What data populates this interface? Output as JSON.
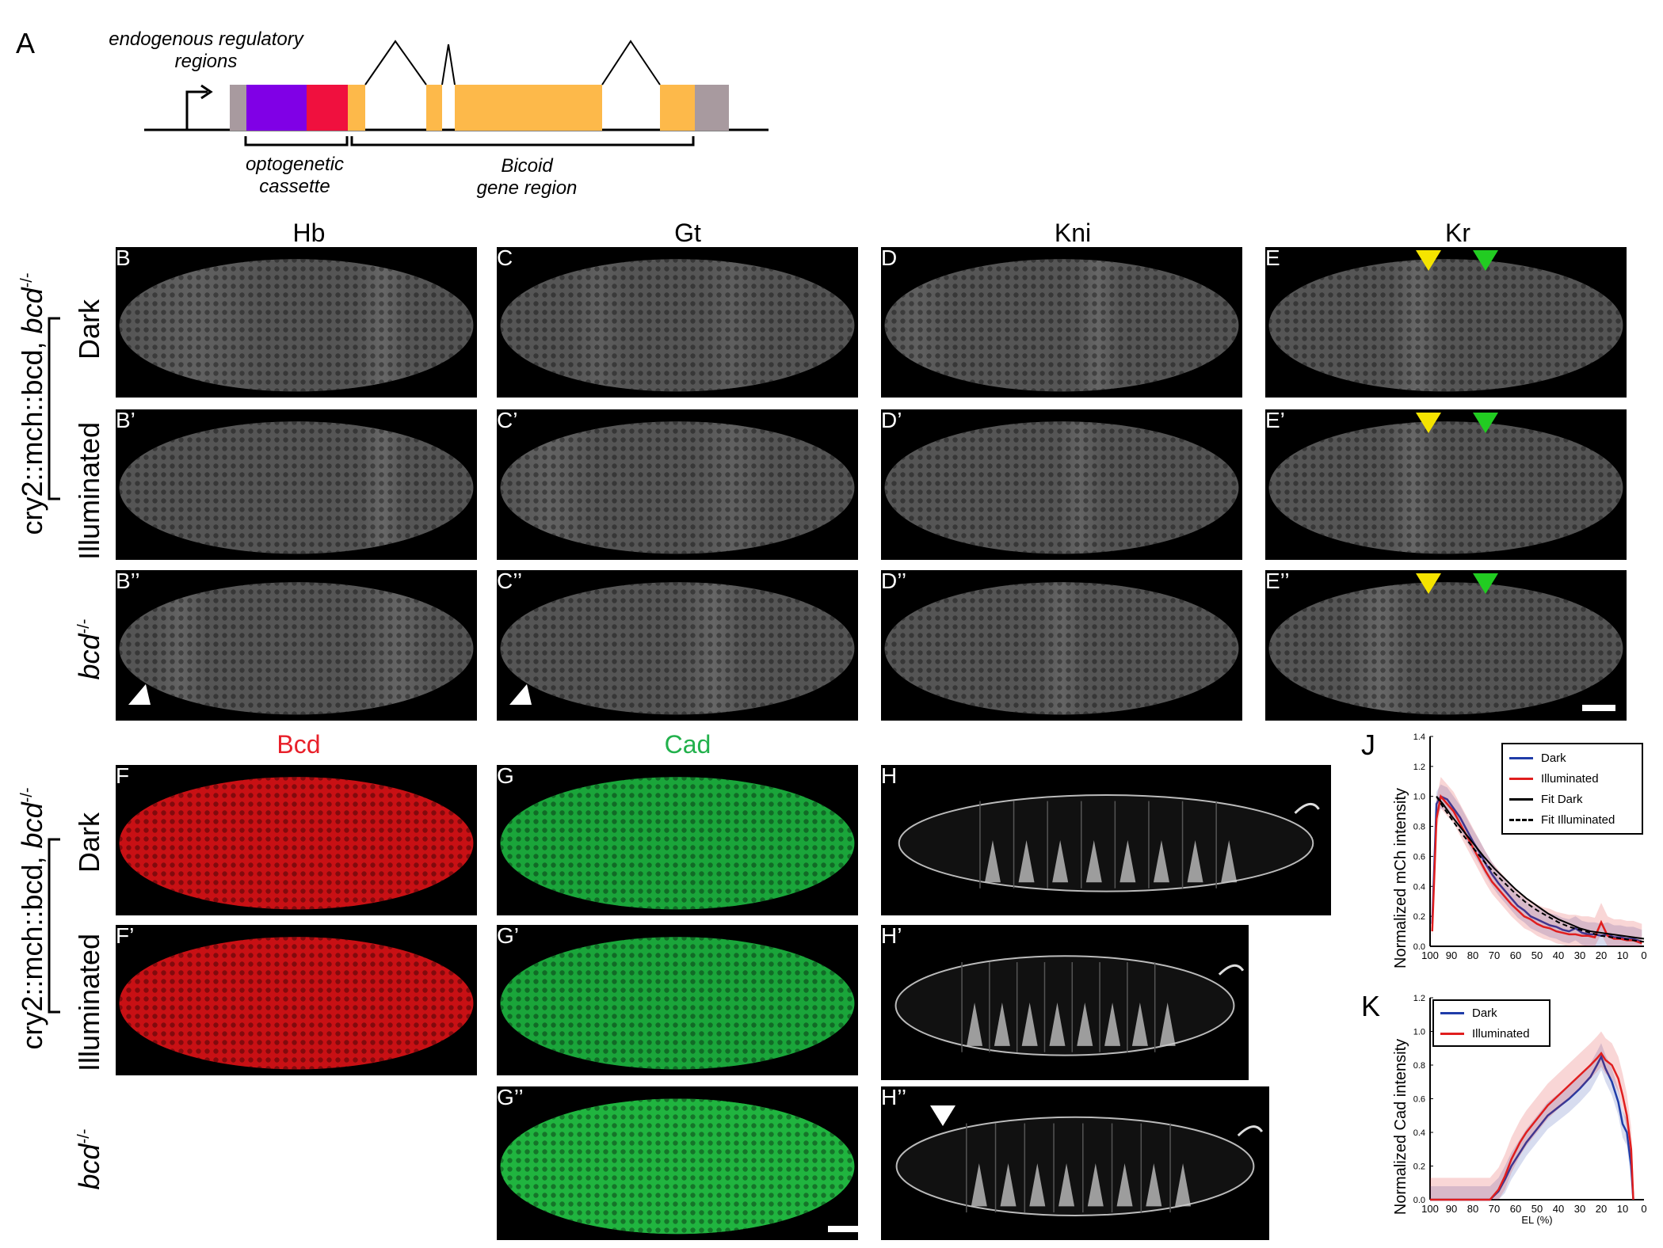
{
  "figure_label_A": "A",
  "gene_diagram": {
    "regulatory_label_line1": "endogenous regulatory",
    "regulatory_label_line2": "regions",
    "cassette_label_line1": "optogenetic",
    "cassette_label_line2": "cassette",
    "bicoid_label_line1": "Bicoid",
    "bicoid_label_line2": "gene region",
    "colors": {
      "utr": "#a89a9f",
      "cry2": "#8000e6",
      "mcherry": "#f0103e",
      "exon": "#fdb94a"
    }
  },
  "columns": {
    "hb": "Hb",
    "gt": "Gt",
    "kni": "Kni",
    "kr": "Kr",
    "bcd": "Bcd",
    "cad": "Cad"
  },
  "column_colors": {
    "bcd": "#e8202a",
    "cad": "#22b14c"
  },
  "genotype_label": "cry2::mch::bcd, ",
  "genotype_italic": "bcd",
  "genotype_sup": "-/-",
  "rows": {
    "dark": "Dark",
    "illuminated": "Illuminated",
    "bcd_italic": "bcd",
    "bcd_sup": "-/-"
  },
  "panels": {
    "B": "B",
    "C": "C",
    "D": "D",
    "E": "E",
    "B1": "B’",
    "C1": "C’",
    "D1": "D’",
    "E1": "E’",
    "B2": "B’’",
    "C2": "C’’",
    "D2": "D’’",
    "E2": "E’’",
    "F": "F",
    "G": "G",
    "H": "H",
    "F1": "F’",
    "G1": "G’",
    "H1": "H’",
    "G2": "G’’",
    "H2": "H’’"
  },
  "arrow_colors": {
    "yellow": "#f5e400",
    "green": "#22cc22",
    "white": "#ffffff"
  },
  "chart_data": [
    {
      "panel": "J",
      "type": "line",
      "ylabel": "Normalized mCh intensity",
      "xlabel": "",
      "xlim": [
        100,
        0
      ],
      "ylim": [
        0,
        1.4
      ],
      "xticks": [
        "100",
        "90",
        "80",
        "70",
        "60",
        "50",
        "40",
        "30",
        "20",
        "10",
        "0"
      ],
      "yticks": [
        "0.0",
        "0.2",
        "0.4",
        "0.6",
        "0.8",
        "1.0",
        "1.2",
        "1.4"
      ],
      "legend": [
        "Dark",
        "Illuminated",
        "Fit Dark",
        "Fit Illuminated"
      ],
      "legend_placement": "top-right",
      "series": [
        {
          "name": "Dark",
          "color": "#1f3ca8",
          "x": [
            99,
            97,
            95,
            92,
            89,
            86,
            83,
            80,
            77,
            74,
            71,
            68,
            65,
            62,
            59,
            56,
            53,
            50,
            47,
            44,
            41,
            38,
            35,
            32,
            29,
            26,
            23,
            20,
            17,
            14,
            11,
            8,
            5,
            3,
            1
          ],
          "y": [
            0.15,
            0.95,
            1.0,
            0.98,
            0.92,
            0.86,
            0.78,
            0.7,
            0.63,
            0.55,
            0.48,
            0.42,
            0.37,
            0.32,
            0.27,
            0.24,
            0.2,
            0.18,
            0.16,
            0.14,
            0.13,
            0.11,
            0.1,
            0.12,
            0.09,
            0.08,
            0.08,
            0.07,
            0.08,
            0.06,
            0.06,
            0.05,
            0.05,
            0.04,
            0.03
          ]
        },
        {
          "name": "Illuminated",
          "color": "#e01e1e",
          "x": [
            99,
            97,
            95,
            92,
            89,
            86,
            83,
            80,
            77,
            74,
            71,
            68,
            65,
            62,
            59,
            56,
            53,
            50,
            47,
            44,
            41,
            38,
            35,
            32,
            29,
            26,
            23,
            20,
            17,
            14,
            11,
            8,
            5,
            3,
            1
          ],
          "y": [
            0.1,
            0.85,
            1.0,
            0.95,
            0.9,
            0.82,
            0.74,
            0.66,
            0.58,
            0.5,
            0.43,
            0.38,
            0.33,
            0.28,
            0.24,
            0.2,
            0.18,
            0.15,
            0.13,
            0.12,
            0.1,
            0.09,
            0.08,
            0.08,
            0.07,
            0.07,
            0.06,
            0.16,
            0.07,
            0.05,
            0.05,
            0.04,
            0.04,
            0.03,
            0.02
          ]
        },
        {
          "name": "Fit Dark",
          "color": "#000000",
          "style": "solid",
          "x": [
            97,
            94,
            90,
            85,
            80,
            75,
            70,
            65,
            60,
            55,
            50,
            45,
            40,
            35,
            30,
            25,
            20,
            15,
            10,
            5,
            0
          ],
          "y": [
            1.0,
            0.95,
            0.87,
            0.78,
            0.69,
            0.6,
            0.52,
            0.45,
            0.38,
            0.32,
            0.27,
            0.22,
            0.18,
            0.15,
            0.12,
            0.1,
            0.09,
            0.08,
            0.07,
            0.06,
            0.05
          ]
        },
        {
          "name": "Fit Illuminated",
          "color": "#000000",
          "style": "dashed",
          "x": [
            97,
            94,
            90,
            85,
            80,
            75,
            70,
            65,
            60,
            55,
            50,
            45,
            40,
            35,
            30,
            25,
            20,
            15,
            10,
            5,
            0
          ],
          "y": [
            1.0,
            0.93,
            0.85,
            0.75,
            0.66,
            0.57,
            0.49,
            0.42,
            0.35,
            0.29,
            0.24,
            0.2,
            0.16,
            0.13,
            0.11,
            0.09,
            0.07,
            0.06,
            0.05,
            0.04,
            0.03
          ]
        }
      ]
    },
    {
      "panel": "K",
      "type": "line",
      "ylabel": "Normalized Cad intensity",
      "xlabel": "EL (%)",
      "xlim": [
        100,
        0
      ],
      "ylim": [
        0,
        1.2
      ],
      "xticks": [
        "100",
        "90",
        "80",
        "70",
        "60",
        "50",
        "40",
        "30",
        "20",
        "10",
        "0"
      ],
      "yticks": [
        "0.0",
        "0.2",
        "0.4",
        "0.6",
        "0.8",
        "1.0",
        "1.2"
      ],
      "legend": [
        "Dark",
        "Illuminated"
      ],
      "legend_placement": "top-left",
      "series": [
        {
          "name": "Dark",
          "color": "#1f3ca8",
          "x": [
            100,
            90,
            80,
            72,
            68,
            65,
            62,
            58,
            55,
            50,
            45,
            40,
            35,
            30,
            25,
            22,
            20,
            18,
            15,
            12,
            10,
            8,
            6,
            5
          ],
          "y": [
            0.0,
            0.0,
            0.0,
            0.0,
            0.05,
            0.12,
            0.2,
            0.28,
            0.34,
            0.42,
            0.5,
            0.55,
            0.6,
            0.66,
            0.73,
            0.8,
            0.85,
            0.78,
            0.7,
            0.58,
            0.45,
            0.4,
            0.2,
            0.0
          ]
        },
        {
          "name": "Illuminated",
          "color": "#e01e1e",
          "x": [
            100,
            90,
            80,
            72,
            68,
            65,
            62,
            58,
            55,
            50,
            45,
            40,
            35,
            30,
            25,
            22,
            20,
            18,
            15,
            12,
            10,
            8,
            6,
            5
          ],
          "y": [
            0.0,
            0.0,
            0.0,
            0.0,
            0.06,
            0.14,
            0.24,
            0.34,
            0.4,
            0.48,
            0.56,
            0.62,
            0.68,
            0.74,
            0.8,
            0.84,
            0.87,
            0.83,
            0.8,
            0.72,
            0.62,
            0.5,
            0.3,
            0.0
          ]
        }
      ]
    }
  ]
}
